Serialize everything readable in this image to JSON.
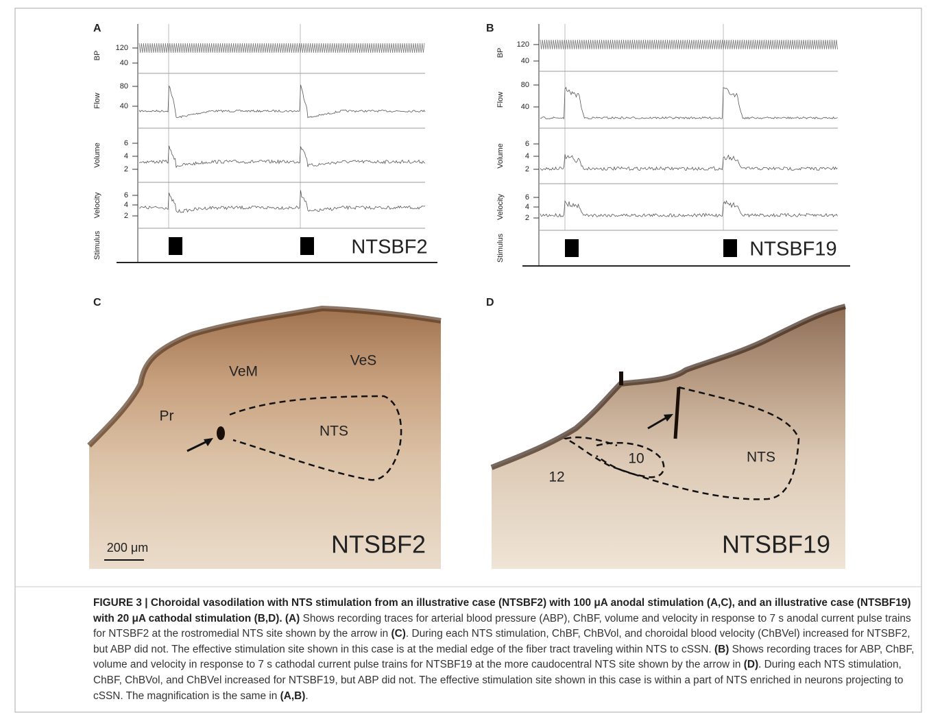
{
  "figure": {
    "panels": [
      {
        "label": "A",
        "case": "NTSBF2",
        "channels": [
          {
            "name": "BP",
            "ticks": [
              "120",
              "40"
            ]
          },
          {
            "name": "Flow",
            "ticks": [
              "80",
              "40"
            ]
          },
          {
            "name": "Volume",
            "ticks": [
              "6",
              "4",
              "2"
            ]
          },
          {
            "name": "Velocity",
            "ticks": [
              "6",
              "4",
              "2"
            ]
          },
          {
            "name": "Stimulus"
          }
        ]
      },
      {
        "label": "B",
        "case": "NTSBF19",
        "channels": [
          {
            "name": "BP",
            "ticks": [
              "120",
              "40"
            ]
          },
          {
            "name": "Flow",
            "ticks": [
              "80",
              "40"
            ]
          },
          {
            "name": "Volume",
            "ticks": [
              "6",
              "4",
              "2"
            ]
          },
          {
            "name": "Velocity",
            "ticks": [
              "6",
              "4",
              "2"
            ]
          },
          {
            "name": "Stimulus"
          }
        ]
      }
    ],
    "micrographs": [
      {
        "label": "C",
        "case": "NTSBF2",
        "regions": [
          "VeM",
          "VeS",
          "Pr",
          "NTS"
        ],
        "scale": "200 μm"
      },
      {
        "label": "D",
        "case": "NTSBF19",
        "regions": [
          "NTS",
          "10",
          "12"
        ]
      }
    ],
    "caption": [
      "FIGURE 3 | Choroidal vasodilation with NTS stimulation from an illustrative case (NTSBF2) with 100 μA anodal stimulation (A,C), and an illustrative case (NTSBF19) with 20 μA cathodal stimulation (B,D).",
      "(A)",
      "Shows recording traces for arterial blood pressure (ABP), ChBF, volume and velocity in response to 7 s anodal current pulse trains for NTSBF2 at the rostromedial NTS site shown by the arrow in",
      "(C)",
      ". During each NTS stimulation, ChBF, ChBVol, and choroidal blood velocity (ChBVel) increased for NTSBF2, but ABP did not. The effective stimulation site shown in this case is at the medial edge of the fiber tract traveling within NTS to cSSN.",
      "(B)",
      "Shows recording traces for ABP, ChBF, volume and velocity in response to 7 s cathodal current pulse trains for NTSBF19 at the more caudocentral NTS site shown by the arrow in",
      "(D)",
      ". During each NTS stimulation, ChBF, ChBVol, and ChBVel increased for NTSBF19, but ABP did not. The effective stimulation site shown in this case is within a part of NTS enriched in neurons projecting to cSSN. The magnification is the same in",
      "(A,B)",
      "."
    ]
  }
}
